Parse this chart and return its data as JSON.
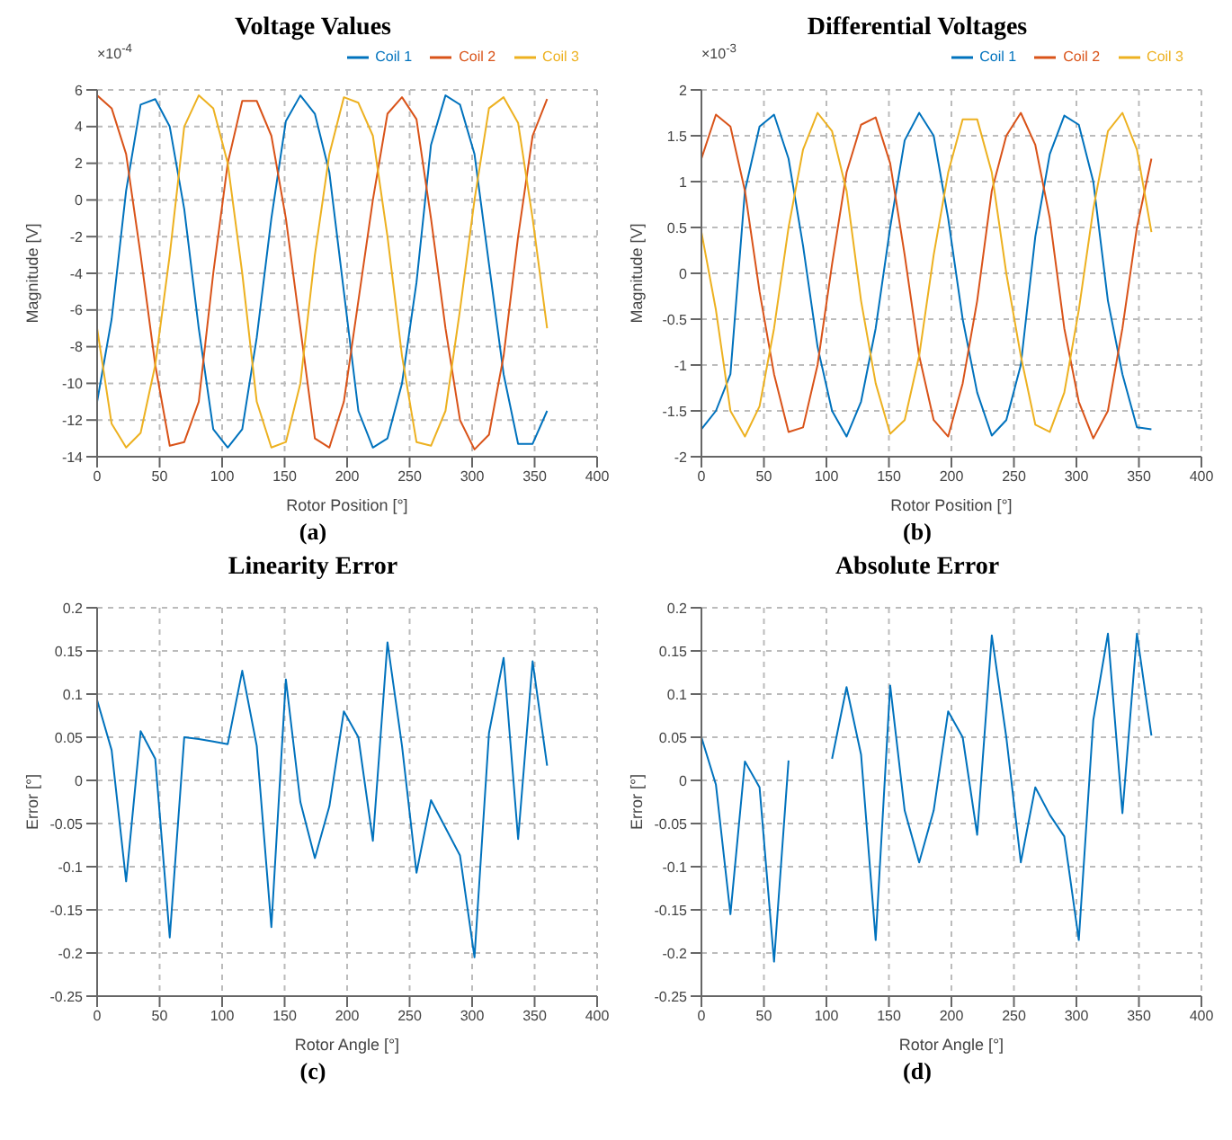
{
  "chart_data": [
    {
      "type": "line",
      "title": "Voltage Values",
      "xlabel": "Rotor Position [°]",
      "ylabel": "Magnitude [V]",
      "annotations": [
        "×10$^{-4}$",
        "(a)"
      ],
      "x": [
        0,
        11.6,
        23.2,
        34.8,
        46.5,
        58.1,
        69.7,
        81.3,
        92.9,
        104.5,
        116.1,
        127.7,
        139.4,
        151,
        162.6,
        174.2,
        185.8,
        197.4,
        209,
        220.6,
        232.3,
        243.9,
        255.5,
        267.1,
        278.7,
        290.3,
        301.9,
        313.5,
        325.2,
        336.8,
        348.4,
        360
      ],
      "series": [
        {
          "name": "Coil 1",
          "color": "#0072bd",
          "values": [
            -11,
            -6.5,
            0.5,
            5.2,
            5.5,
            4,
            -0.5,
            -7,
            -12.5,
            -13.5,
            -12.5,
            -7.5,
            -1,
            4.3,
            5.7,
            4.7,
            1.5,
            -5,
            -11.5,
            -13.5,
            -13,
            -10,
            -4.5,
            3,
            5.7,
            5.2,
            2.5,
            -3.5,
            -9.5,
            -13.3,
            -13.3,
            -11.5
          ]
        },
        {
          "name": "Coil 2",
          "color": "#d95319",
          "values": [
            5.7,
            5,
            2.5,
            -3,
            -9,
            -13.4,
            -13.2,
            -11,
            -4,
            2,
            5.4,
            5.4,
            3.5,
            -1,
            -7,
            -13,
            -13.5,
            -11,
            -5.5,
            0,
            4.7,
            5.6,
            4.4,
            -1,
            -7,
            -12,
            -13.6,
            -12.8,
            -8.5,
            -2,
            3.5,
            5.5
          ]
        },
        {
          "name": "Coil 3",
          "color": "#edb120",
          "values": [
            -7,
            -12.2,
            -13.5,
            -12.7,
            -9,
            -3,
            4,
            5.7,
            5,
            2,
            -4,
            -11,
            -13.5,
            -13.2,
            -10,
            -3,
            2.5,
            5.6,
            5.3,
            3.5,
            -2,
            -8.5,
            -13.2,
            -13.4,
            -11.5,
            -6,
            0,
            5,
            5.6,
            4.2,
            -1,
            -7
          ]
        }
      ],
      "xlim": [
        0,
        400
      ],
      "xticks": [
        0,
        50,
        100,
        150,
        200,
        250,
        300,
        350,
        400
      ],
      "ylim": [
        -14,
        6
      ],
      "yticks": [
        -14,
        -12,
        -10,
        -8,
        -6,
        -4,
        -2,
        0,
        2,
        4,
        6
      ],
      "grid": true,
      "legend": "top right",
      "line_style": "solid",
      "marker": "none"
    },
    {
      "type": "line",
      "title": "Differential Voltages",
      "xlabel": "Rotor Position [°]",
      "ylabel": "Magnitude [V]",
      "annotations": [
        "×10$^{-3}$",
        "(b)"
      ],
      "x": [
        0,
        11.6,
        23.2,
        34.8,
        46.5,
        58.1,
        69.7,
        81.3,
        92.9,
        104.5,
        116.1,
        127.7,
        139.4,
        151,
        162.6,
        174.2,
        185.8,
        197.4,
        209,
        220.6,
        232.3,
        243.9,
        255.5,
        267.1,
        278.7,
        290.3,
        301.9,
        313.5,
        325.2,
        336.8,
        348.4,
        360
      ],
      "series": [
        {
          "name": "Coil 1",
          "color": "#0072bd",
          "values": [
            -1.7,
            -1.5,
            -1.1,
            0.9,
            1.6,
            1.73,
            1.25,
            0.3,
            -0.8,
            -1.5,
            -1.78,
            -1.4,
            -0.6,
            0.5,
            1.45,
            1.75,
            1.5,
            0.6,
            -0.5,
            -1.3,
            -1.77,
            -1.6,
            -1,
            0.4,
            1.3,
            1.72,
            1.62,
            1,
            -0.3,
            -1.1,
            -1.68,
            -1.7
          ]
        },
        {
          "name": "Coil 2",
          "color": "#d95319",
          "values": [
            1.25,
            1.73,
            1.6,
            0.9,
            -0.2,
            -1.1,
            -1.73,
            -1.68,
            -1,
            0.1,
            1.1,
            1.62,
            1.7,
            1.2,
            0.2,
            -0.9,
            -1.6,
            -1.78,
            -1.2,
            -0.3,
            0.9,
            1.5,
            1.75,
            1.4,
            0.6,
            -0.6,
            -1.4,
            -1.8,
            -1.5,
            -0.6,
            0.5,
            1.25
          ]
        },
        {
          "name": "Coil 3",
          "color": "#edb120",
          "values": [
            0.45,
            -0.4,
            -1.5,
            -1.78,
            -1.45,
            -0.6,
            0.5,
            1.35,
            1.75,
            1.55,
            0.9,
            -0.3,
            -1.2,
            -1.75,
            -1.6,
            -0.9,
            0.2,
            1.1,
            1.68,
            1.68,
            1.1,
            0,
            -0.9,
            -1.65,
            -1.73,
            -1.3,
            -0.4,
            0.7,
            1.55,
            1.75,
            1.35,
            0.45
          ]
        }
      ],
      "xlim": [
        0,
        400
      ],
      "xticks": [
        0,
        50,
        100,
        150,
        200,
        250,
        300,
        350,
        400
      ],
      "ylim": [
        -2,
        2
      ],
      "yticks": [
        -2,
        -1.5,
        -1,
        -0.5,
        0,
        0.5,
        1,
        1.5,
        2
      ],
      "grid": true,
      "legend": "top right",
      "line_style": "solid",
      "marker": "none"
    },
    {
      "type": "line",
      "title": "Linearity Error",
      "xlabel": "Rotor Angle [°]",
      "ylabel": "Error [°]",
      "annotations": [
        "(c)"
      ],
      "x": [
        0,
        11.6,
        23.2,
        34.8,
        46.5,
        58.1,
        69.7,
        81.3,
        92.9,
        104.5,
        116.1,
        127.7,
        139.4,
        151,
        162.6,
        174.2,
        185.8,
        197.4,
        209,
        220.6,
        232.3,
        243.9,
        255.5,
        267.1,
        278.7,
        290.3,
        301.9,
        313.5,
        325.2,
        336.8,
        348.4,
        360
      ],
      "series": [
        {
          "color": "#0072bd",
          "values": [
            0.093,
            0.035,
            -0.117,
            0.057,
            0.025,
            -0.182,
            0.05,
            0.048,
            0.045,
            0.042,
            0.127,
            0.04,
            -0.17,
            0.117,
            -0.025,
            -0.09,
            -0.03,
            0.08,
            0.05,
            -0.07,
            0.16,
            0.04,
            -0.107,
            -0.023,
            -0.055,
            -0.087,
            -0.205,
            0.055,
            0.142,
            -0.068,
            0.138,
            0.017
          ]
        }
      ],
      "xlim": [
        0,
        400
      ],
      "xticks": [
        0,
        50,
        100,
        150,
        200,
        250,
        300,
        350,
        400
      ],
      "ylim": [
        -0.25,
        0.2
      ],
      "yticks": [
        -0.25,
        -0.2,
        -0.15,
        -0.1,
        -0.05,
        0,
        0.05,
        0.1,
        0.15,
        0.2
      ],
      "grid": true,
      "line_style": "solid",
      "marker": "none"
    },
    {
      "type": "line",
      "title": "Absolute Error",
      "xlabel": "Rotor Angle [°]",
      "ylabel": "Error [°]",
      "annotations": [
        "(d)"
      ],
      "x": [
        0,
        11.6,
        23.2,
        34.8,
        46.5,
        58.1,
        69.7,
        81.3,
        92.9,
        104.5,
        116.1,
        127.7,
        139.4,
        151,
        162.6,
        174.2,
        185.8,
        197.4,
        209,
        220.6,
        232.3,
        243.9,
        255.5,
        267.1,
        278.7,
        290.3,
        301.9,
        313.5,
        325.2,
        336.8,
        348.4,
        360
      ],
      "series": [
        {
          "color": "#0072bd",
          "values": [
            0.05,
            -0.005,
            -0.155,
            0.022,
            -0.008,
            -0.21,
            0.023,
            null,
            null,
            0.025,
            0.108,
            0.03,
            -0.185,
            0.11,
            -0.035,
            -0.095,
            -0.035,
            0.08,
            0.05,
            -0.063,
            0.168,
            0.05,
            -0.095,
            -0.008,
            -0.04,
            -0.065,
            -0.185,
            0.07,
            0.17,
            -0.038,
            0.17,
            0.052
          ]
        }
      ],
      "xlim": [
        0,
        400
      ],
      "xticks": [
        0,
        50,
        100,
        150,
        200,
        250,
        300,
        350,
        400
      ],
      "ylim": [
        -0.25,
        0.2
      ],
      "yticks": [
        -0.25,
        -0.2,
        -0.15,
        -0.1,
        -0.05,
        0,
        0.05,
        0.1,
        0.15,
        0.2
      ],
      "grid": true,
      "line_style": "solid",
      "marker": "none"
    }
  ]
}
